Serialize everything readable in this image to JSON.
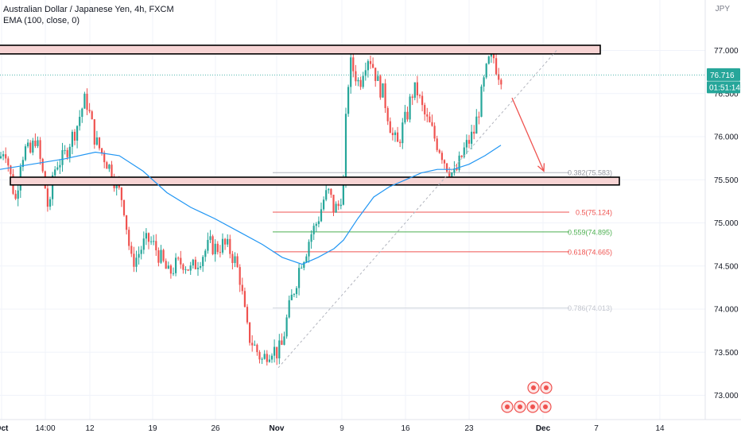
{
  "header": {
    "symbol_title": "Australian Dollar / Japanese Yen, 4h, FXCM",
    "indicator": "EMA (100, close, 0)",
    "currency": "JPY"
  },
  "price_labels": {
    "last": "76.716",
    "countdown": "01:51:14"
  },
  "colors": {
    "up": "#26a69a",
    "down": "#ef5350",
    "ema": "#2196f3",
    "zone_fill": "#f7d4d4",
    "current_price": "#26a69a",
    "fib_mid": "#ef5350",
    "fib_green": "#4caf50",
    "fib_grey": "#b2b5be"
  },
  "chart_data": {
    "type": "candlestick",
    "ylim": [
      72.8,
      77.45
    ],
    "y_ticks": [
      "77.000",
      "76.500",
      "76.000",
      "75.500",
      "75.000",
      "74.500",
      "74.000",
      "73.500",
      "73.000"
    ],
    "x_ticks": [
      "Oct",
      "14:00",
      "12",
      "19",
      "26",
      "Nov",
      "9",
      "16",
      "23",
      "Dec",
      "7",
      "14"
    ],
    "current_price": 76.716,
    "resistance_zone": [
      76.96,
      77.06
    ],
    "support_zone": [
      75.44,
      75.53
    ],
    "fib_levels": [
      {
        "label": "0.382(75.583)",
        "value": 75.583,
        "style": "grey"
      },
      {
        "label": "0.5(75.124)",
        "value": 75.124,
        "style": "red"
      },
      {
        "label": "0.559(74.895)",
        "value": 74.895,
        "style": "green"
      },
      {
        "label": "0.618(74.665)",
        "value": 74.665,
        "style": "red"
      },
      {
        "label": "0.786(74.013)",
        "value": 74.013,
        "style": "faint"
      }
    ],
    "price_path": [
      {
        "x": 0,
        "y": 75.75
      },
      {
        "x": 6,
        "y": 75.9
      },
      {
        "x": 14,
        "y": 75.5
      },
      {
        "x": 20,
        "y": 75.25
      },
      {
        "x": 26,
        "y": 75.75
      },
      {
        "x": 32,
        "y": 75.85
      },
      {
        "x": 38,
        "y": 75.8
      },
      {
        "x": 45,
        "y": 76.0
      },
      {
        "x": 52,
        "y": 75.65
      },
      {
        "x": 58,
        "y": 75.35
      },
      {
        "x": 62,
        "y": 75.05
      },
      {
        "x": 66,
        "y": 75.55
      },
      {
        "x": 72,
        "y": 75.7
      },
      {
        "x": 80,
        "y": 75.75
      },
      {
        "x": 88,
        "y": 75.95
      },
      {
        "x": 96,
        "y": 76.1
      },
      {
        "x": 102,
        "y": 76.3
      },
      {
        "x": 108,
        "y": 76.45
      },
      {
        "x": 114,
        "y": 76.2
      },
      {
        "x": 120,
        "y": 75.95
      },
      {
        "x": 126,
        "y": 75.85
      },
      {
        "x": 132,
        "y": 75.75
      },
      {
        "x": 140,
        "y": 75.6
      },
      {
        "x": 148,
        "y": 75.4
      },
      {
        "x": 155,
        "y": 75.25
      },
      {
        "x": 160,
        "y": 74.9
      },
      {
        "x": 165,
        "y": 74.55
      },
      {
        "x": 172,
        "y": 74.6
      },
      {
        "x": 180,
        "y": 74.75
      },
      {
        "x": 188,
        "y": 74.8
      },
      {
        "x": 196,
        "y": 74.7
      },
      {
        "x": 204,
        "y": 74.55
      },
      {
        "x": 212,
        "y": 74.4
      },
      {
        "x": 220,
        "y": 74.5
      },
      {
        "x": 230,
        "y": 74.55
      },
      {
        "x": 240,
        "y": 74.45
      },
      {
        "x": 248,
        "y": 74.55
      },
      {
        "x": 256,
        "y": 74.65
      },
      {
        "x": 264,
        "y": 74.75
      },
      {
        "x": 272,
        "y": 74.7
      },
      {
        "x": 280,
        "y": 74.75
      },
      {
        "x": 288,
        "y": 74.7
      },
      {
        "x": 296,
        "y": 74.55
      },
      {
        "x": 302,
        "y": 74.35
      },
      {
        "x": 307,
        "y": 74.0
      },
      {
        "x": 312,
        "y": 73.7
      },
      {
        "x": 318,
        "y": 73.6
      },
      {
        "x": 324,
        "y": 73.5
      },
      {
        "x": 330,
        "y": 73.4
      },
      {
        "x": 336,
        "y": 73.5
      },
      {
        "x": 342,
        "y": 73.55
      },
      {
        "x": 348,
        "y": 73.5
      },
      {
        "x": 354,
        "y": 73.55
      },
      {
        "x": 360,
        "y": 73.85
      },
      {
        "x": 366,
        "y": 74.1
      },
      {
        "x": 372,
        "y": 74.3
      },
      {
        "x": 378,
        "y": 74.55
      },
      {
        "x": 384,
        "y": 74.65
      },
      {
        "x": 390,
        "y": 74.85
      },
      {
        "x": 396,
        "y": 74.95
      },
      {
        "x": 402,
        "y": 75.1
      },
      {
        "x": 408,
        "y": 75.3
      },
      {
        "x": 414,
        "y": 75.35
      },
      {
        "x": 420,
        "y": 75.15
      },
      {
        "x": 426,
        "y": 75.2
      },
      {
        "x": 432,
        "y": 75.45
      },
      {
        "x": 436,
        "y": 76.4
      },
      {
        "x": 440,
        "y": 76.85
      },
      {
        "x": 446,
        "y": 76.75
      },
      {
        "x": 452,
        "y": 76.6
      },
      {
        "x": 458,
        "y": 76.85
      },
      {
        "x": 464,
        "y": 76.95
      },
      {
        "x": 470,
        "y": 76.8
      },
      {
        "x": 476,
        "y": 76.6
      },
      {
        "x": 482,
        "y": 76.5
      },
      {
        "x": 488,
        "y": 76.25
      },
      {
        "x": 494,
        "y": 76.0
      },
      {
        "x": 500,
        "y": 75.9
      },
      {
        "x": 506,
        "y": 76.1
      },
      {
        "x": 512,
        "y": 76.25
      },
      {
        "x": 518,
        "y": 76.5
      },
      {
        "x": 524,
        "y": 76.55
      },
      {
        "x": 530,
        "y": 76.35
      },
      {
        "x": 536,
        "y": 76.2
      },
      {
        "x": 542,
        "y": 76.1
      },
      {
        "x": 548,
        "y": 75.95
      },
      {
        "x": 554,
        "y": 75.85
      },
      {
        "x": 560,
        "y": 75.7
      },
      {
        "x": 566,
        "y": 75.6
      },
      {
        "x": 572,
        "y": 75.55
      },
      {
        "x": 578,
        "y": 75.7
      },
      {
        "x": 584,
        "y": 75.85
      },
      {
        "x": 590,
        "y": 75.95
      },
      {
        "x": 596,
        "y": 76.05
      },
      {
        "x": 602,
        "y": 76.3
      },
      {
        "x": 608,
        "y": 76.6
      },
      {
        "x": 614,
        "y": 76.85
      },
      {
        "x": 620,
        "y": 76.95
      },
      {
        "x": 626,
        "y": 76.75
      },
      {
        "x": 632,
        "y": 76.7
      }
    ],
    "ema_path": [
      {
        "x": 0,
        "y": 75.62
      },
      {
        "x": 40,
        "y": 75.68
      },
      {
        "x": 80,
        "y": 75.74
      },
      {
        "x": 120,
        "y": 75.82
      },
      {
        "x": 150,
        "y": 75.78
      },
      {
        "x": 180,
        "y": 75.6
      },
      {
        "x": 210,
        "y": 75.35
      },
      {
        "x": 240,
        "y": 75.18
      },
      {
        "x": 270,
        "y": 75.05
      },
      {
        "x": 300,
        "y": 74.9
      },
      {
        "x": 330,
        "y": 74.75
      },
      {
        "x": 355,
        "y": 74.6
      },
      {
        "x": 380,
        "y": 74.52
      },
      {
        "x": 400,
        "y": 74.6
      },
      {
        "x": 420,
        "y": 74.7
      },
      {
        "x": 432,
        "y": 74.8
      },
      {
        "x": 450,
        "y": 75.05
      },
      {
        "x": 470,
        "y": 75.3
      },
      {
        "x": 490,
        "y": 75.42
      },
      {
        "x": 510,
        "y": 75.5
      },
      {
        "x": 530,
        "y": 75.58
      },
      {
        "x": 550,
        "y": 75.62
      },
      {
        "x": 570,
        "y": 75.62
      },
      {
        "x": 590,
        "y": 75.68
      },
      {
        "x": 610,
        "y": 75.78
      },
      {
        "x": 630,
        "y": 75.9
      }
    ],
    "dashed_trendline": [
      {
        "x": 350,
        "y": 73.32
      },
      {
        "x": 700,
        "y": 77.0
      }
    ],
    "forecast_arrow": [
      {
        "x": 644,
        "y": 76.45
      },
      {
        "x": 684,
        "y": 75.6
      }
    ]
  }
}
